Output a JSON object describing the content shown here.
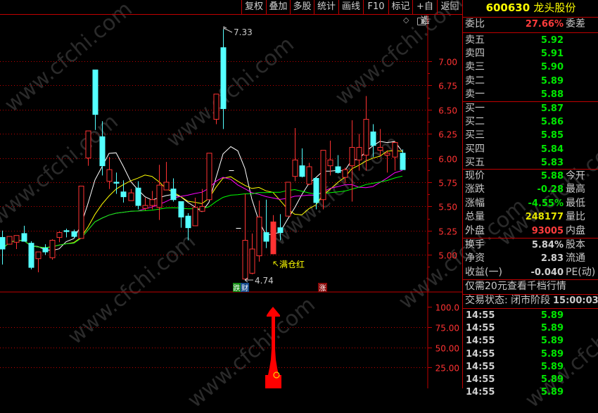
{
  "watermark": "www.cfchi.com",
  "toolbar": {
    "buttons": [
      "复权",
      "叠加",
      "多股",
      "统计",
      "画线",
      "F10",
      "标记",
      "+自选",
      "返回"
    ]
  },
  "chart_icons": {
    "diamond": "diamond-icon",
    "panel": "panel-toggle-icon"
  },
  "colors": {
    "up": "#ff3232",
    "down": "#54ffff",
    "grid": "#c00000",
    "ma5": "#ffffff",
    "ma10": "#ffff00",
    "ma20": "#ff00ff",
    "ma30": "#00ff00",
    "axis_text": "#ff3232"
  },
  "chart_data": [
    {
      "type": "candlestick",
      "ylim": [
        4.7,
        7.4
      ],
      "y_ticks": [
        "7.00",
        "6.75",
        "6.50",
        "6.25",
        "6.00",
        "5.75",
        "5.50",
        "5.25",
        "5.00"
      ],
      "y_tick_values": [
        7.0,
        6.75,
        6.5,
        6.25,
        6.0,
        5.75,
        5.5,
        5.25,
        5.0
      ],
      "grid": true,
      "moving_averages": [
        5,
        10,
        20,
        30
      ],
      "candles": [
        {
          "o": 5.18,
          "h": 5.25,
          "l": 4.9,
          "c": 5.06
        },
        {
          "o": 5.11,
          "h": 5.19,
          "l": 5.11,
          "c": 5.19
        },
        {
          "o": 5.13,
          "h": 5.2,
          "l": 5.06,
          "c": 5.2
        },
        {
          "o": 5.22,
          "h": 5.3,
          "l": 5.14,
          "c": 5.14
        },
        {
          "o": 5.12,
          "h": 5.14,
          "l": 4.85,
          "c": 4.87
        },
        {
          "o": 4.96,
          "h": 5.03,
          "l": 4.82,
          "c": 5.03
        },
        {
          "o": 5.07,
          "h": 5.11,
          "l": 5.0,
          "c": 5.03
        },
        {
          "o": 4.97,
          "h": 5.16,
          "l": 4.95,
          "c": 5.15
        },
        {
          "o": 5.18,
          "h": 5.24,
          "l": 5.13,
          "c": 5.23
        },
        {
          "o": 5.25,
          "h": 5.27,
          "l": 5.18,
          "c": 5.24
        },
        {
          "o": 5.24,
          "h": 5.26,
          "l": 5.17,
          "c": 5.19
        },
        {
          "o": 5.17,
          "h": 5.71,
          "l": 5.17,
          "c": 5.71
        },
        {
          "o": 6.0,
          "h": 6.28,
          "l": 5.92,
          "c": 6.28
        },
        {
          "o": 6.91,
          "h": 6.91,
          "l": 6.29,
          "c": 6.45
        },
        {
          "o": 6.22,
          "h": 6.38,
          "l": 5.82,
          "c": 5.92
        },
        {
          "o": 5.76,
          "h": 6.01,
          "l": 5.68,
          "c": 5.88
        },
        {
          "o": 5.75,
          "h": 5.85,
          "l": 5.63,
          "c": 5.74
        },
        {
          "o": 5.65,
          "h": 5.77,
          "l": 5.54,
          "c": 5.6
        },
        {
          "o": 5.56,
          "h": 5.68,
          "l": 5.56,
          "c": 5.64
        },
        {
          "o": 5.69,
          "h": 5.76,
          "l": 5.47,
          "c": 5.51
        },
        {
          "o": 5.48,
          "h": 5.59,
          "l": 5.46,
          "c": 5.51
        },
        {
          "o": 5.51,
          "h": 5.66,
          "l": 5.47,
          "c": 5.57
        },
        {
          "o": 5.49,
          "h": 5.93,
          "l": 5.36,
          "c": 5.72
        },
        {
          "o": 5.67,
          "h": 5.96,
          "l": 5.67,
          "c": 5.75
        },
        {
          "o": 5.68,
          "h": 5.79,
          "l": 5.55,
          "c": 5.57
        },
        {
          "o": 5.55,
          "h": 5.55,
          "l": 5.28,
          "c": 5.39
        },
        {
          "o": 5.4,
          "h": 5.43,
          "l": 5.15,
          "c": 5.28
        },
        {
          "o": 5.3,
          "h": 5.59,
          "l": 5.3,
          "c": 5.49
        },
        {
          "o": 5.45,
          "h": 5.68,
          "l": 5.45,
          "c": 5.5
        },
        {
          "o": 5.57,
          "h": 6.05,
          "l": 5.57,
          "c": 6.05
        },
        {
          "o": 6.4,
          "h": 6.66,
          "l": 6.35,
          "c": 6.66
        },
        {
          "o": 7.14,
          "h": 7.33,
          "l": 6.3,
          "c": 6.51
        },
        {
          "o": 5.87,
          "h": 5.87,
          "l": 5.87,
          "c": 5.87
        },
        {
          "o": 5.28,
          "h": 5.28,
          "l": 5.28,
          "c": 5.28
        },
        {
          "o": 4.75,
          "h": 5.63,
          "l": 4.74,
          "c": 5.15
        },
        {
          "o": 4.81,
          "h": 5.22,
          "l": 4.8,
          "c": 5.06
        },
        {
          "o": 4.99,
          "h": 5.56,
          "l": 4.93,
          "c": 5.39
        },
        {
          "o": 5.23,
          "h": 5.57,
          "l": 5.07,
          "c": 5.14
        },
        {
          "o": 5.01,
          "h": 5.41,
          "l": 5.01,
          "c": 5.34,
          "solid": true
        },
        {
          "o": 5.28,
          "h": 5.42,
          "l": 5.15,
          "c": 5.23
        },
        {
          "o": 5.4,
          "h": 5.75,
          "l": 5.4,
          "c": 5.75
        },
        {
          "o": 5.81,
          "h": 6.31,
          "l": 5.76,
          "c": 5.98
        },
        {
          "o": 5.92,
          "h": 6.1,
          "l": 5.8,
          "c": 5.81
        },
        {
          "o": 5.73,
          "h": 5.95,
          "l": 5.72,
          "c": 5.91
        },
        {
          "o": 5.79,
          "h": 5.8,
          "l": 5.47,
          "c": 5.54
        },
        {
          "o": 5.57,
          "h": 6.08,
          "l": 5.47,
          "c": 6.08
        },
        {
          "o": 5.92,
          "h": 6.18,
          "l": 5.82,
          "c": 5.98
        },
        {
          "o": 5.91,
          "h": 6.03,
          "l": 5.84,
          "c": 5.85
        },
        {
          "o": 5.8,
          "h": 5.9,
          "l": 5.74,
          "c": 5.88
        },
        {
          "o": 5.92,
          "h": 6.39,
          "l": 5.55,
          "c": 6.11
        },
        {
          "o": 5.98,
          "h": 6.25,
          "l": 5.87,
          "c": 6.11
        },
        {
          "o": 6.03,
          "h": 6.64,
          "l": 5.87,
          "c": 6.4
        },
        {
          "o": 6.27,
          "h": 6.35,
          "l": 6.01,
          "c": 6.13
        },
        {
          "o": 6.08,
          "h": 6.3,
          "l": 6.02,
          "c": 6.11
        },
        {
          "o": 6.03,
          "h": 6.08,
          "l": 5.85,
          "c": 6.05
        },
        {
          "o": 6.01,
          "h": 6.17,
          "l": 5.87,
          "c": 6.16
        },
        {
          "o": 6.05,
          "h": 6.09,
          "l": 5.89,
          "c": 5.88
        }
      ],
      "annotations": {
        "high_label": "7.33",
        "low_label": "4.74",
        "signal_label": "满仓红",
        "badge_fall": "跌",
        "badge_cai": "财",
        "badge_rise": "涨"
      }
    },
    {
      "type": "bar",
      "ylim": [
        0,
        110
      ],
      "y_ticks": [
        "100.0",
        "75.00",
        "50.00",
        "25.00"
      ],
      "y_tick_values": [
        100,
        75,
        50,
        25
      ],
      "signal_value": 100,
      "signal_icon": "zheng-seal-icon"
    }
  ],
  "panel": {
    "code": "600630",
    "name": "龙头股份",
    "weibi_label": "委比",
    "weibi_value": "27.66%",
    "weicha_label": "委差",
    "sell": [
      {
        "label": "卖五",
        "price": "5.92"
      },
      {
        "label": "卖四",
        "price": "5.91"
      },
      {
        "label": "卖三",
        "price": "5.90"
      },
      {
        "label": "卖二",
        "price": "5.89"
      },
      {
        "label": "卖一",
        "price": "5.88"
      }
    ],
    "buy": [
      {
        "label": "买一",
        "price": "5.87"
      },
      {
        "label": "买二",
        "price": "5.86"
      },
      {
        "label": "买三",
        "price": "5.85"
      },
      {
        "label": "买四",
        "price": "5.84"
      },
      {
        "label": "买五",
        "price": "5.83"
      }
    ],
    "quote": [
      {
        "label": "现价",
        "value": "5.88",
        "label2": "今开",
        "color": "green"
      },
      {
        "label": "涨跌",
        "value": "-0.28",
        "label2": "最高",
        "color": "green"
      },
      {
        "label": "涨幅",
        "value": "-4.55%",
        "label2": "最低",
        "color": "green"
      },
      {
        "label": "总量",
        "value": "248177",
        "label2": "量比",
        "color": "yellow"
      },
      {
        "label": "外盘",
        "value": "93005",
        "label2": "内盘",
        "color": "red"
      }
    ],
    "fin": [
      {
        "label": "换手",
        "value": "5.84%",
        "label2": "股本"
      },
      {
        "label": "净资",
        "value": "2.83",
        "label2": "流通"
      },
      {
        "label": "收益(一)",
        "value": "-0.040",
        "label2": "PE(动)"
      }
    ],
    "promo": "仅需20元查看千档行情",
    "status": "交易状态: 闭市阶段",
    "status_time": "15:00:03",
    "ticks": [
      {
        "time": "14:55",
        "price": "5.89"
      },
      {
        "time": "14:55",
        "price": "5.89"
      },
      {
        "time": "14:55",
        "price": "5.89"
      },
      {
        "time": "14:55",
        "price": "5.89"
      },
      {
        "time": "14:55",
        "price": "5.89"
      },
      {
        "time": "14:55",
        "price": "5.89"
      },
      {
        "time": "14:55",
        "price": "5.89"
      }
    ]
  }
}
